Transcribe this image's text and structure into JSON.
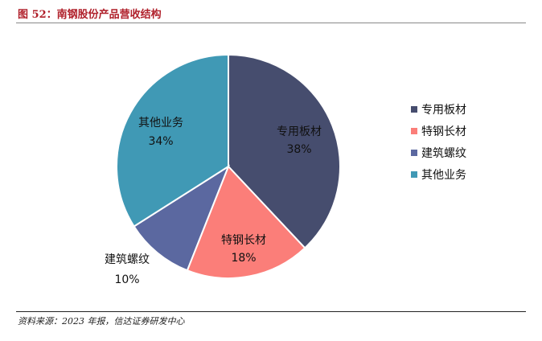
{
  "header": {
    "figure_title": "图 52：南钢股份产品营收结构"
  },
  "footer": {
    "source": "资料来源：2023 年报，信达证券研发中心"
  },
  "chart_data": {
    "type": "pie",
    "title": "",
    "legend_position": "right",
    "slices": [
      {
        "name": "专用板材",
        "value": 38,
        "label": "38%",
        "color": "#464d6e"
      },
      {
        "name": "特钢长材",
        "value": 18,
        "label": "18%",
        "color": "#fb7e79"
      },
      {
        "name": "建筑螺纹",
        "value": 10,
        "label": "10%",
        "color": "#5b68a0"
      },
      {
        "name": "其他业务",
        "value": 34,
        "label": "34%",
        "color": "#4099b5"
      }
    ]
  }
}
